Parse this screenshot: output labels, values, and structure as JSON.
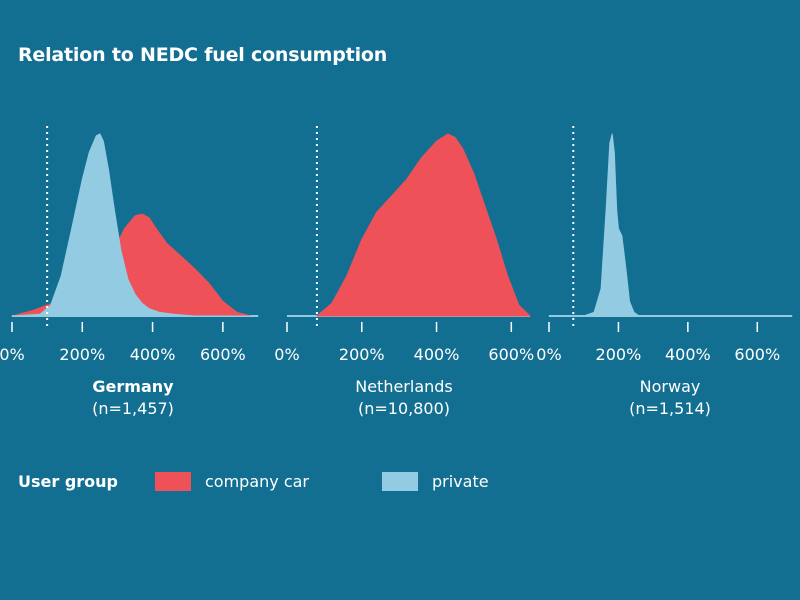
{
  "title": "Relation to NEDC fuel consumption",
  "colors": {
    "background": "#136f91",
    "company car": "#ef5159",
    "private": "#93cbe2"
  },
  "legend": {
    "title": "User group",
    "items": [
      {
        "label": "company car",
        "color": "#ef5159"
      },
      {
        "label": "private",
        "color": "#93cbe2"
      }
    ]
  },
  "chart_data": [
    {
      "type": "area",
      "panel": "Germany",
      "label": "Germany",
      "subtitle": "(n=1,457)",
      "label_bold": true,
      "xlim": [
        0,
        700
      ],
      "xticks": [
        0,
        200,
        400,
        600
      ],
      "xtick_labels": [
        "0%",
        "200%",
        "400%",
        "600%"
      ],
      "reference_line": 100,
      "series": [
        {
          "name": "company car",
          "x": [
            0,
            60,
            100,
            150,
            200,
            250,
            290,
            320,
            350,
            370,
            390,
            410,
            440,
            480,
            520,
            560,
            600,
            640,
            680,
            700
          ],
          "y": [
            0,
            0.03,
            0.06,
            0.09,
            0.14,
            0.23,
            0.36,
            0.48,
            0.55,
            0.56,
            0.54,
            0.48,
            0.4,
            0.33,
            0.26,
            0.18,
            0.08,
            0.02,
            0,
            0
          ]
        },
        {
          "name": "private",
          "x": [
            0,
            80,
            110,
            140,
            170,
            200,
            220,
            240,
            250,
            260,
            275,
            290,
            310,
            330,
            350,
            370,
            390,
            420,
            460,
            520,
            600,
            700
          ],
          "y": [
            0,
            0.01,
            0.06,
            0.22,
            0.48,
            0.75,
            0.9,
            0.99,
            1.0,
            0.96,
            0.8,
            0.6,
            0.36,
            0.2,
            0.12,
            0.07,
            0.04,
            0.02,
            0.01,
            0,
            0,
            0
          ]
        }
      ]
    },
    {
      "type": "area",
      "panel": "Netherlands",
      "label": "Netherlands",
      "subtitle": "(n=10,800)",
      "label_bold": false,
      "xlim": [
        0,
        650
      ],
      "xticks": [
        0,
        200,
        400,
        600
      ],
      "xtick_labels": [
        "0%",
        "200%",
        "400%",
        "600%"
      ],
      "reference_line": 80,
      "series": [
        {
          "name": "company car",
          "x": [
            80,
            120,
            160,
            200,
            240,
            280,
            320,
            360,
            400,
            430,
            450,
            470,
            500,
            530,
            560,
            590,
            620,
            650
          ],
          "y": [
            0,
            0.07,
            0.22,
            0.42,
            0.57,
            0.66,
            0.75,
            0.87,
            0.96,
            1.0,
            0.98,
            0.92,
            0.78,
            0.6,
            0.42,
            0.22,
            0.06,
            0
          ]
        }
      ]
    },
    {
      "type": "area",
      "panel": "Norway",
      "label": "Norway",
      "subtitle": "(n=1,514)",
      "label_bold": false,
      "xlim": [
        0,
        700
      ],
      "xticks": [
        0,
        200,
        400,
        600
      ],
      "xtick_labels": [
        "0%",
        "200%",
        "400%",
        "600%"
      ],
      "reference_line": 70,
      "series": [
        {
          "name": "private",
          "x": [
            0,
            100,
            130,
            150,
            165,
            175,
            182,
            188,
            195,
            200,
            210,
            222,
            232,
            245,
            260,
            300,
            700
          ],
          "y": [
            0,
            0,
            0.02,
            0.15,
            0.6,
            0.95,
            1.0,
            0.9,
            0.58,
            0.48,
            0.44,
            0.25,
            0.08,
            0.02,
            0,
            0,
            0
          ]
        }
      ]
    }
  ]
}
